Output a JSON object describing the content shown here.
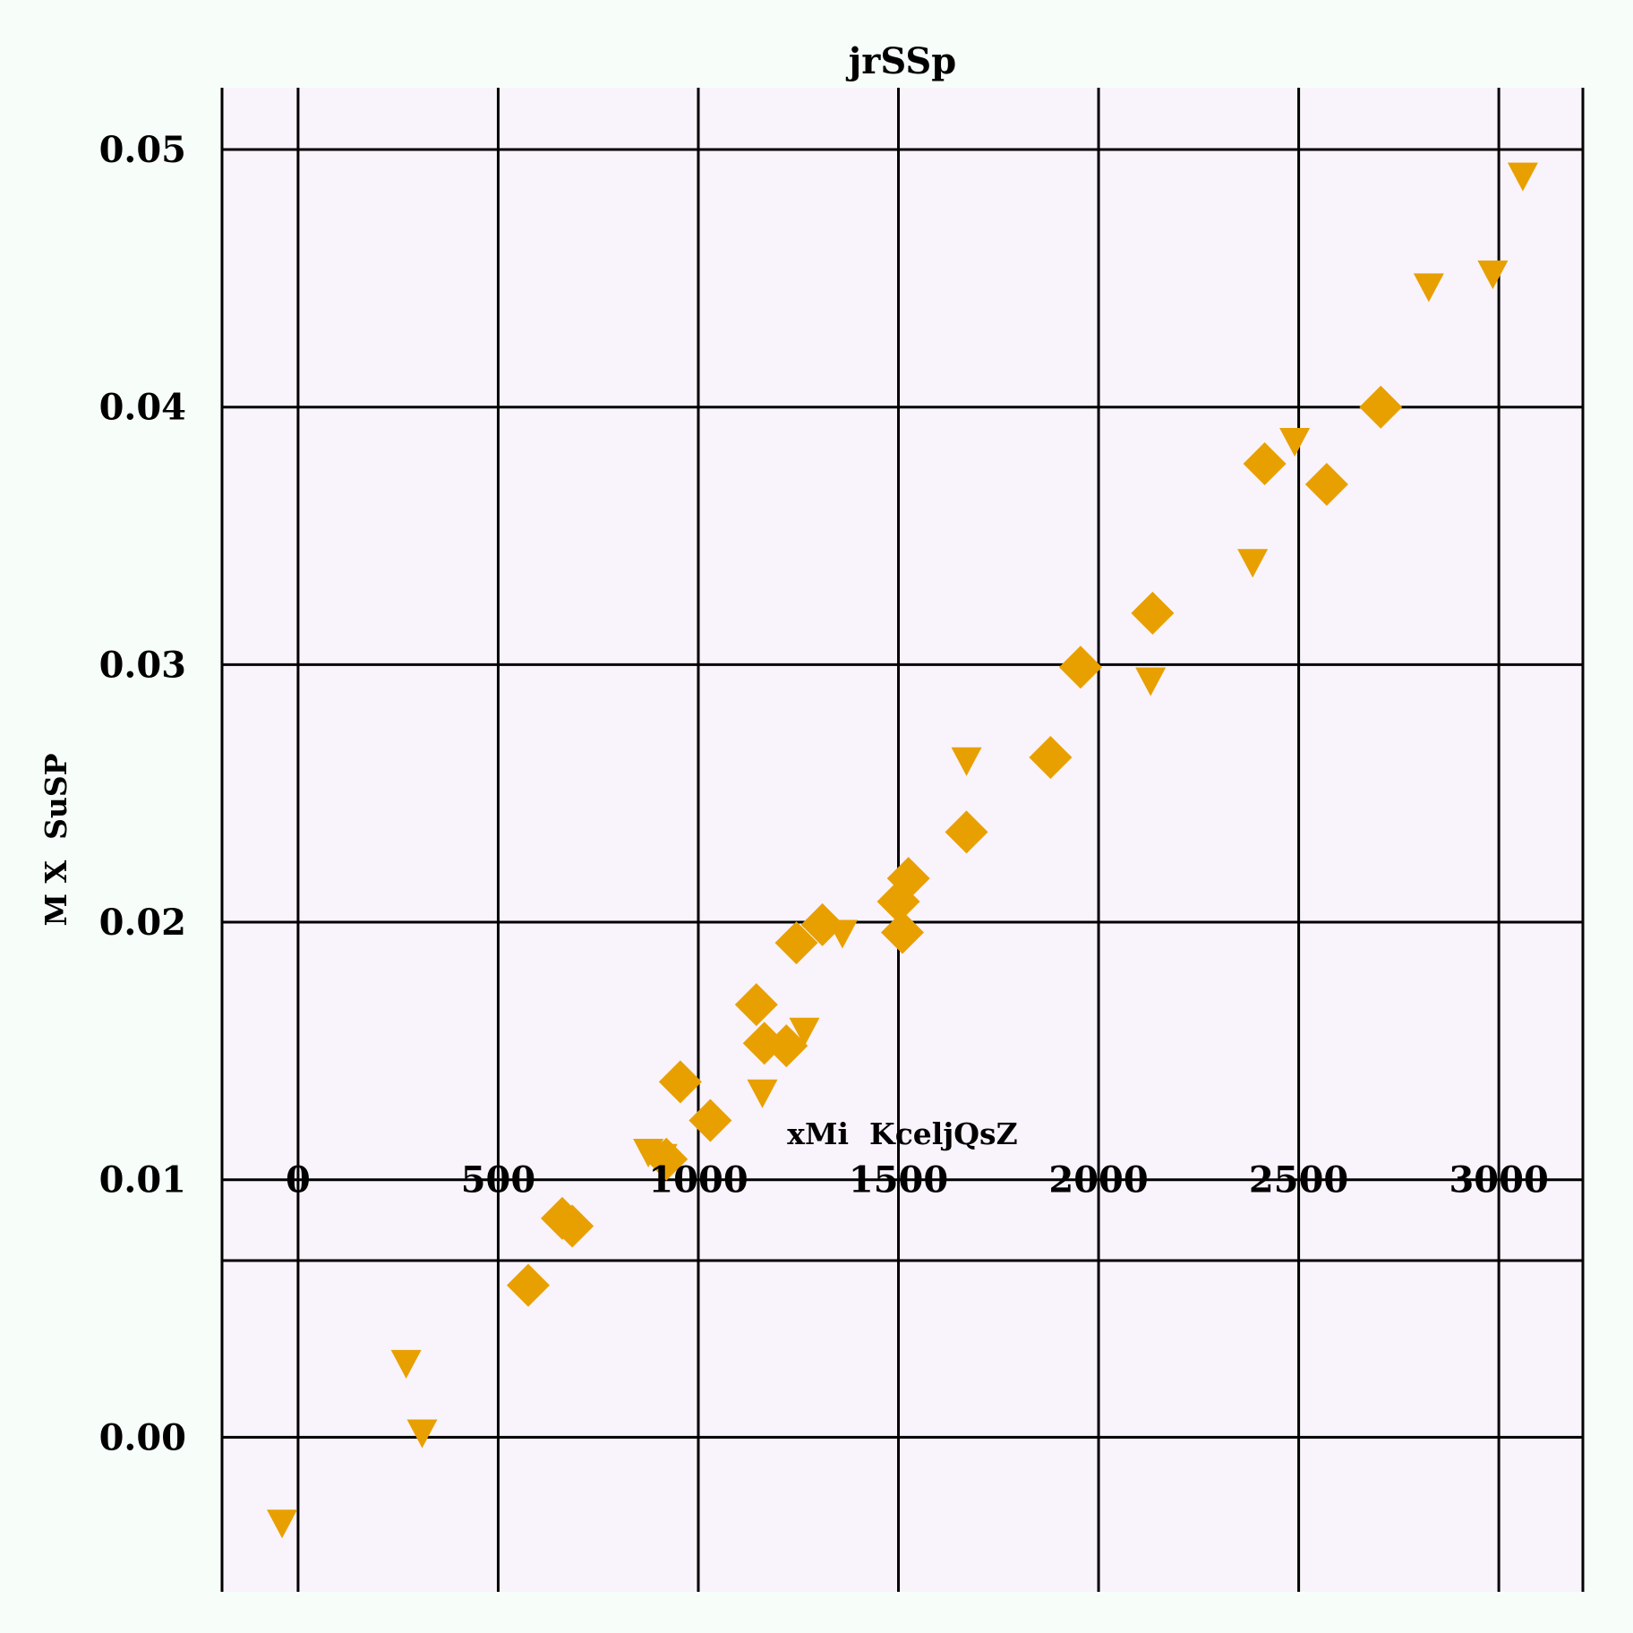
{
  "chart_data": {
    "type": "scatter",
    "title": "jrSSp",
    "xlabel": "xMi  KceljQsZ",
    "ylabel": "M X  SuSP",
    "xlim": [
      -190,
      3210
    ],
    "ylim": [
      -0.006,
      0.0524
    ],
    "x_ticks": [
      0,
      500,
      1000,
      1500,
      2000,
      2500,
      3000
    ],
    "x_tick_labels": [
      "0",
      "500",
      "1000",
      "1500",
      "2000",
      "2500",
      "3000"
    ],
    "y_ticks": [
      0.0,
      0.01,
      0.02,
      0.03,
      0.04,
      0.05
    ],
    "y_tick_labels": [
      "0.00",
      "0.01",
      "0.02",
      "0.03",
      "0.04",
      "0.05"
    ],
    "grid": true,
    "colors": {
      "marker": "#e8a000",
      "plot_bg": "#f9f3fb",
      "page_bg": "#f7fdf8",
      "grid": "#000000"
    },
    "series": [
      {
        "marker": "diamond",
        "points": [
          [
            575,
            0.0059
          ],
          [
            660,
            0.0085
          ],
          [
            685,
            0.0082
          ],
          [
            955,
            0.0138
          ],
          [
            1030,
            0.0123
          ],
          [
            920,
            0.0108
          ],
          [
            1145,
            0.0168
          ],
          [
            1165,
            0.0153
          ],
          [
            1220,
            0.0152
          ],
          [
            1245,
            0.0192
          ],
          [
            1310,
            0.0199
          ],
          [
            1500,
            0.0208
          ],
          [
            1525,
            0.0217
          ],
          [
            1510,
            0.0196
          ],
          [
            1670,
            0.0235
          ],
          [
            1880,
            0.0264
          ],
          [
            1955,
            0.0299
          ],
          [
            2135,
            0.032
          ],
          [
            2415,
            0.0378
          ],
          [
            2570,
            0.037
          ],
          [
            2705,
            0.04
          ]
        ]
      },
      {
        "marker": "triangle-down",
        "points": [
          [
            -40,
            -0.0034
          ],
          [
            270,
            0.0028
          ],
          [
            310,
            0.0001
          ],
          [
            875,
            0.011
          ],
          [
            910,
            0.0108
          ],
          [
            1160,
            0.0133
          ],
          [
            1265,
            0.0157
          ],
          [
            1360,
            0.0195
          ],
          [
            1670,
            0.0262
          ],
          [
            2130,
            0.0293
          ],
          [
            2385,
            0.0339
          ],
          [
            2490,
            0.0386
          ],
          [
            2825,
            0.0446
          ],
          [
            2985,
            0.0451
          ],
          [
            3060,
            0.0489
          ]
        ]
      }
    ]
  }
}
